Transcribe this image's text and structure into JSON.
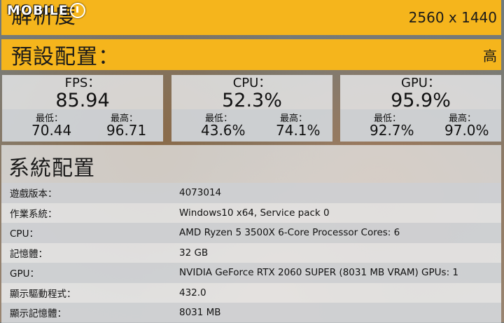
{
  "logo": {
    "text": "MOBILE",
    "icon": "mobile01-logo-mark"
  },
  "resolution": {
    "label": "解析度",
    "value": "2560 x 1440"
  },
  "preset": {
    "label": "預設配置：",
    "value": "高"
  },
  "stats": [
    {
      "title": "FPS：",
      "value": "85.94",
      "min_label": "最低：",
      "min": "70.44",
      "max_label": "最高：",
      "max": "96.71"
    },
    {
      "title": "CPU：",
      "value": "52.3%",
      "min_label": "最低：",
      "min": "43.6%",
      "max_label": "最高：",
      "max": "74.1%"
    },
    {
      "title": "GPU：",
      "value": "95.9%",
      "min_label": "最低：",
      "min": "92.7%",
      "max_label": "最高：",
      "max": "97.0%"
    }
  ],
  "system": {
    "title": "系統配置",
    "rows": [
      {
        "key": "遊戲版本：",
        "value": "4073014"
      },
      {
        "key": "作業系統：",
        "value": "Windows10 x64, Service pack 0"
      },
      {
        "key": "CPU：",
        "value": "AMD Ryzen 5 3500X 6-Core Processor Cores: 6"
      },
      {
        "key": "記憶體：",
        "value": "32 GB"
      },
      {
        "key": "GPU：",
        "value": "NVIDIA GeForce RTX 2060 SUPER (8031 MB VRAM) GPUs: 1"
      },
      {
        "key": "顯示驅動程式：",
        "value": "432.0"
      },
      {
        "key": "顯示記憶體：",
        "value": "8031 MB"
      }
    ]
  }
}
